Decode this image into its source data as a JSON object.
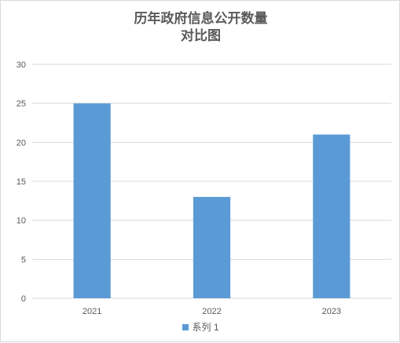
{
  "chart_data": {
    "type": "bar",
    "title_lines": [
      "历年政府信息公开数量",
      "对比图"
    ],
    "categories": [
      "2021",
      "2022",
      "2023"
    ],
    "series": [
      {
        "name": "系列 1",
        "values": [
          25,
          13,
          21
        ],
        "color": "#5b9bd5"
      }
    ],
    "ylim": [
      0,
      30
    ],
    "yticks": [
      0,
      5,
      10,
      15,
      20,
      25,
      30
    ],
    "grid": true,
    "legend_position": "bottom"
  }
}
